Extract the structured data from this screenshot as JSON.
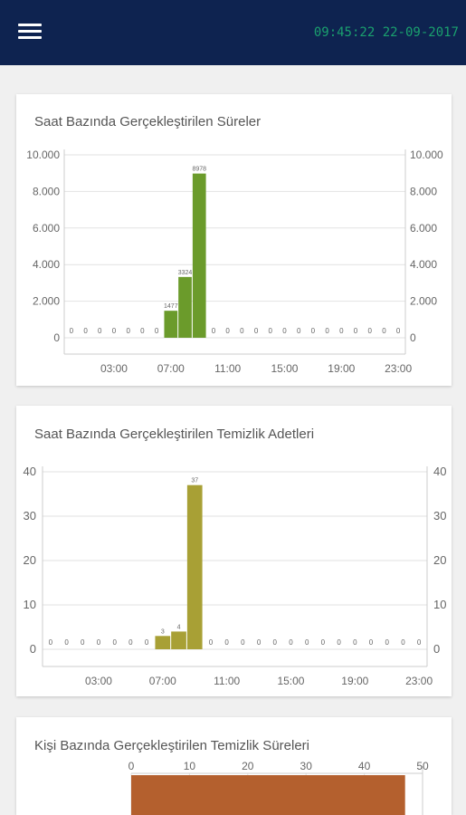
{
  "header": {
    "datetime": "09:45:22 22-09-2017",
    "colors": {
      "appbar": "#0e2350",
      "clock": "#1aa06e"
    },
    "menu_icon": "hamburger-menu-icon"
  },
  "cards": [
    {
      "title": "Saat Bazında Gerçekleştirilen Süreler"
    },
    {
      "title": "Saat Bazında Gerçekleştirilen Temizlik Adetleri"
    },
    {
      "title": "Kişi Bazında Gerçekleştirilen Temizlik Süreleri"
    }
  ],
  "chart_data": [
    {
      "type": "bar",
      "title": "Saat Bazında Gerçekleştirilen Süreler",
      "color": "#6b9b2b",
      "hours": [
        0,
        1,
        2,
        3,
        4,
        5,
        6,
        7,
        8,
        9,
        10,
        11,
        12,
        13,
        14,
        15,
        16,
        17,
        18,
        19,
        20,
        21,
        22,
        23
      ],
      "values": [
        0,
        0,
        0,
        0,
        0,
        0,
        0,
        1477,
        3324,
        8978,
        0,
        0,
        0,
        0,
        0,
        0,
        0,
        0,
        0,
        0,
        0,
        0,
        0,
        0
      ],
      "data_labels": [
        "0",
        "0",
        "0",
        "0",
        "0",
        "0",
        "0",
        "1477",
        "3324",
        "8978",
        "0",
        "0",
        "0",
        "0",
        "0",
        "0",
        "0",
        "0",
        "0",
        "0",
        "0",
        "0",
        "0",
        "0"
      ],
      "x_ticks": [
        "03:00",
        "07:00",
        "11:00",
        "15:00",
        "19:00",
        "23:00"
      ],
      "x_tick_hours": [
        3,
        7,
        11,
        15,
        19,
        23
      ],
      "y_ticks": [
        "0",
        "2.000",
        "4.000",
        "6.000",
        "8.000",
        "10.000"
      ],
      "y_tick_values": [
        0,
        2000,
        4000,
        6000,
        8000,
        10000
      ],
      "ylim": [
        0,
        10000
      ],
      "grid": true
    },
    {
      "type": "bar",
      "title": "Saat Bazında Gerçekleştirilen Temizlik Adetleri",
      "color": "#a8a035",
      "hours": [
        0,
        1,
        2,
        3,
        4,
        5,
        6,
        7,
        8,
        9,
        10,
        11,
        12,
        13,
        14,
        15,
        16,
        17,
        18,
        19,
        20,
        21,
        22,
        23
      ],
      "values": [
        0,
        0,
        0,
        0,
        0,
        0,
        0,
        3,
        4,
        37,
        0,
        0,
        0,
        0,
        0,
        0,
        0,
        0,
        0,
        0,
        0,
        0,
        0,
        0
      ],
      "data_labels": [
        "0",
        "0",
        "0",
        "0",
        "0",
        "0",
        "0",
        "3",
        "4",
        "37",
        "0",
        "0",
        "0",
        "0",
        "0",
        "0",
        "0",
        "0",
        "0",
        "0",
        "0",
        "0",
        "0",
        "0"
      ],
      "x_ticks": [
        "03:00",
        "07:00",
        "11:00",
        "15:00",
        "19:00",
        "23:00"
      ],
      "x_tick_hours": [
        3,
        7,
        11,
        15,
        19,
        23
      ],
      "y_ticks": [
        "0",
        "10",
        "20",
        "30",
        "40"
      ],
      "y_tick_values": [
        0,
        10,
        20,
        30,
        40
      ],
      "ylim": [
        0,
        40
      ],
      "grid": true
    },
    {
      "type": "bar",
      "orientation": "horizontal",
      "title": "Kişi Bazında Gerçekleştirilen Temizlik Süreleri",
      "color": "#b4602e",
      "x_ticks": [
        "0",
        "10",
        "20",
        "30",
        "40",
        "50"
      ],
      "x_tick_values": [
        0,
        10,
        20,
        30,
        40,
        50
      ],
      "xlim": [
        0,
        50
      ],
      "values": [
        47
      ]
    }
  ]
}
